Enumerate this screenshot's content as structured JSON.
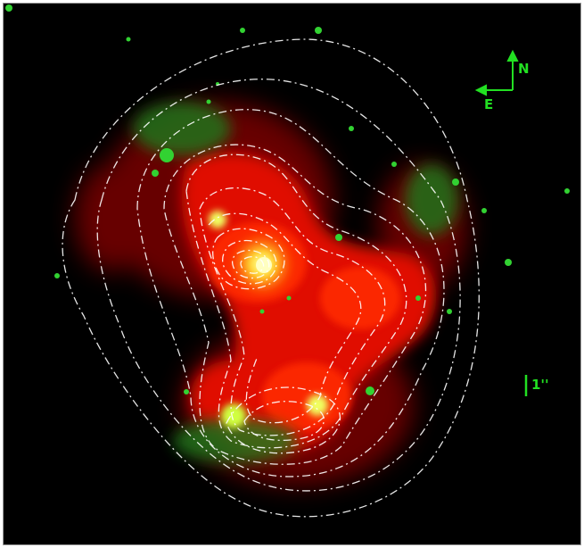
{
  "compass": {
    "north_label": "N",
    "east_label": "E"
  },
  "scale_bar": {
    "label": "1''"
  },
  "colors": {
    "background": "#000000",
    "emission_red": "#ff1a00",
    "emission_green": "#2fd02f",
    "highlight_yellow": "#ffff40",
    "contours": "#ffffff",
    "annotation": "#22e022"
  }
}
